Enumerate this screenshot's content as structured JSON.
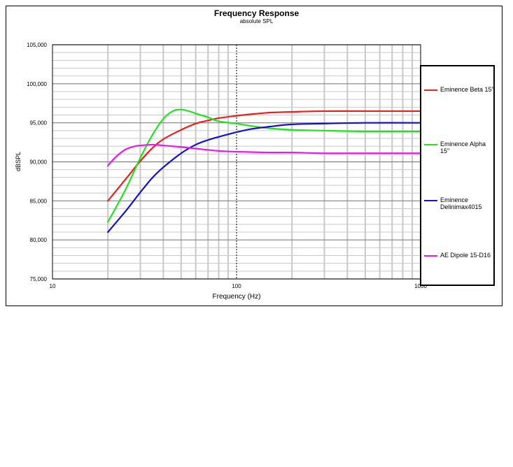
{
  "chart_data": {
    "type": "line",
    "title": "Frequency Response",
    "subtitle": "absolute SPL",
    "xlabel": "Frequency (Hz)",
    "ylabel": "dBSPL",
    "xscale": "log",
    "xlim": [
      10,
      1000
    ],
    "ylim": [
      75,
      105
    ],
    "x_ticks": [
      10,
      100,
      1000
    ],
    "x_tick_labels": [
      "10",
      "100",
      "1000"
    ],
    "y_ticks": [
      75,
      80,
      85,
      90,
      95,
      100,
      105
    ],
    "y_tick_labels": [
      "75,000",
      "80,000",
      "85,000",
      "90,000",
      "95,000",
      "100,000",
      "105,000"
    ],
    "grid": true,
    "legend_position": "right",
    "series": [
      {
        "name": "Eminence Beta 15\"",
        "color": "#e8201e",
        "x": [
          20,
          25,
          30,
          35,
          40,
          50,
          60,
          70,
          80,
          100,
          120,
          150,
          200,
          300,
          500,
          1000
        ],
        "y": [
          85.0,
          87.8,
          90.1,
          91.8,
          92.9,
          94.1,
          94.9,
          95.3,
          95.6,
          95.9,
          96.1,
          96.3,
          96.4,
          96.5,
          96.5,
          96.5
        ]
      },
      {
        "name": "Eminence  Alpha 15\"",
        "color": "#22e21e",
        "x": [
          20,
          25,
          30,
          35,
          40,
          45,
          50,
          55,
          60,
          70,
          80,
          100,
          120,
          150,
          200,
          300,
          500,
          1000
        ],
        "y": [
          82.3,
          86.5,
          90.5,
          93.5,
          95.5,
          96.5,
          96.7,
          96.5,
          96.2,
          95.7,
          95.2,
          94.9,
          94.6,
          94.3,
          94.1,
          94.0,
          93.9,
          93.9
        ]
      },
      {
        "name": "Eminence Delinimax4015",
        "color": "#1411c8",
        "x": [
          20,
          25,
          30,
          35,
          40,
          50,
          60,
          70,
          80,
          100,
          120,
          150,
          200,
          300,
          500,
          1000
        ],
        "y": [
          81.0,
          83.7,
          86.1,
          88.0,
          89.3,
          91.1,
          92.2,
          92.8,
          93.2,
          93.8,
          94.2,
          94.5,
          94.8,
          94.9,
          95.0,
          95.0
        ]
      },
      {
        "name": "AE Dipole 15-D16",
        "color": "#e81ce8",
        "x": [
          20,
          22,
          25,
          28,
          30,
          35,
          40,
          50,
          60,
          80,
          100,
          150,
          200,
          300,
          500,
          1000
        ],
        "y": [
          89.5,
          90.6,
          91.6,
          92.0,
          92.1,
          92.2,
          92.1,
          91.9,
          91.7,
          91.4,
          91.3,
          91.2,
          91.2,
          91.1,
          91.1,
          91.1
        ]
      }
    ]
  }
}
